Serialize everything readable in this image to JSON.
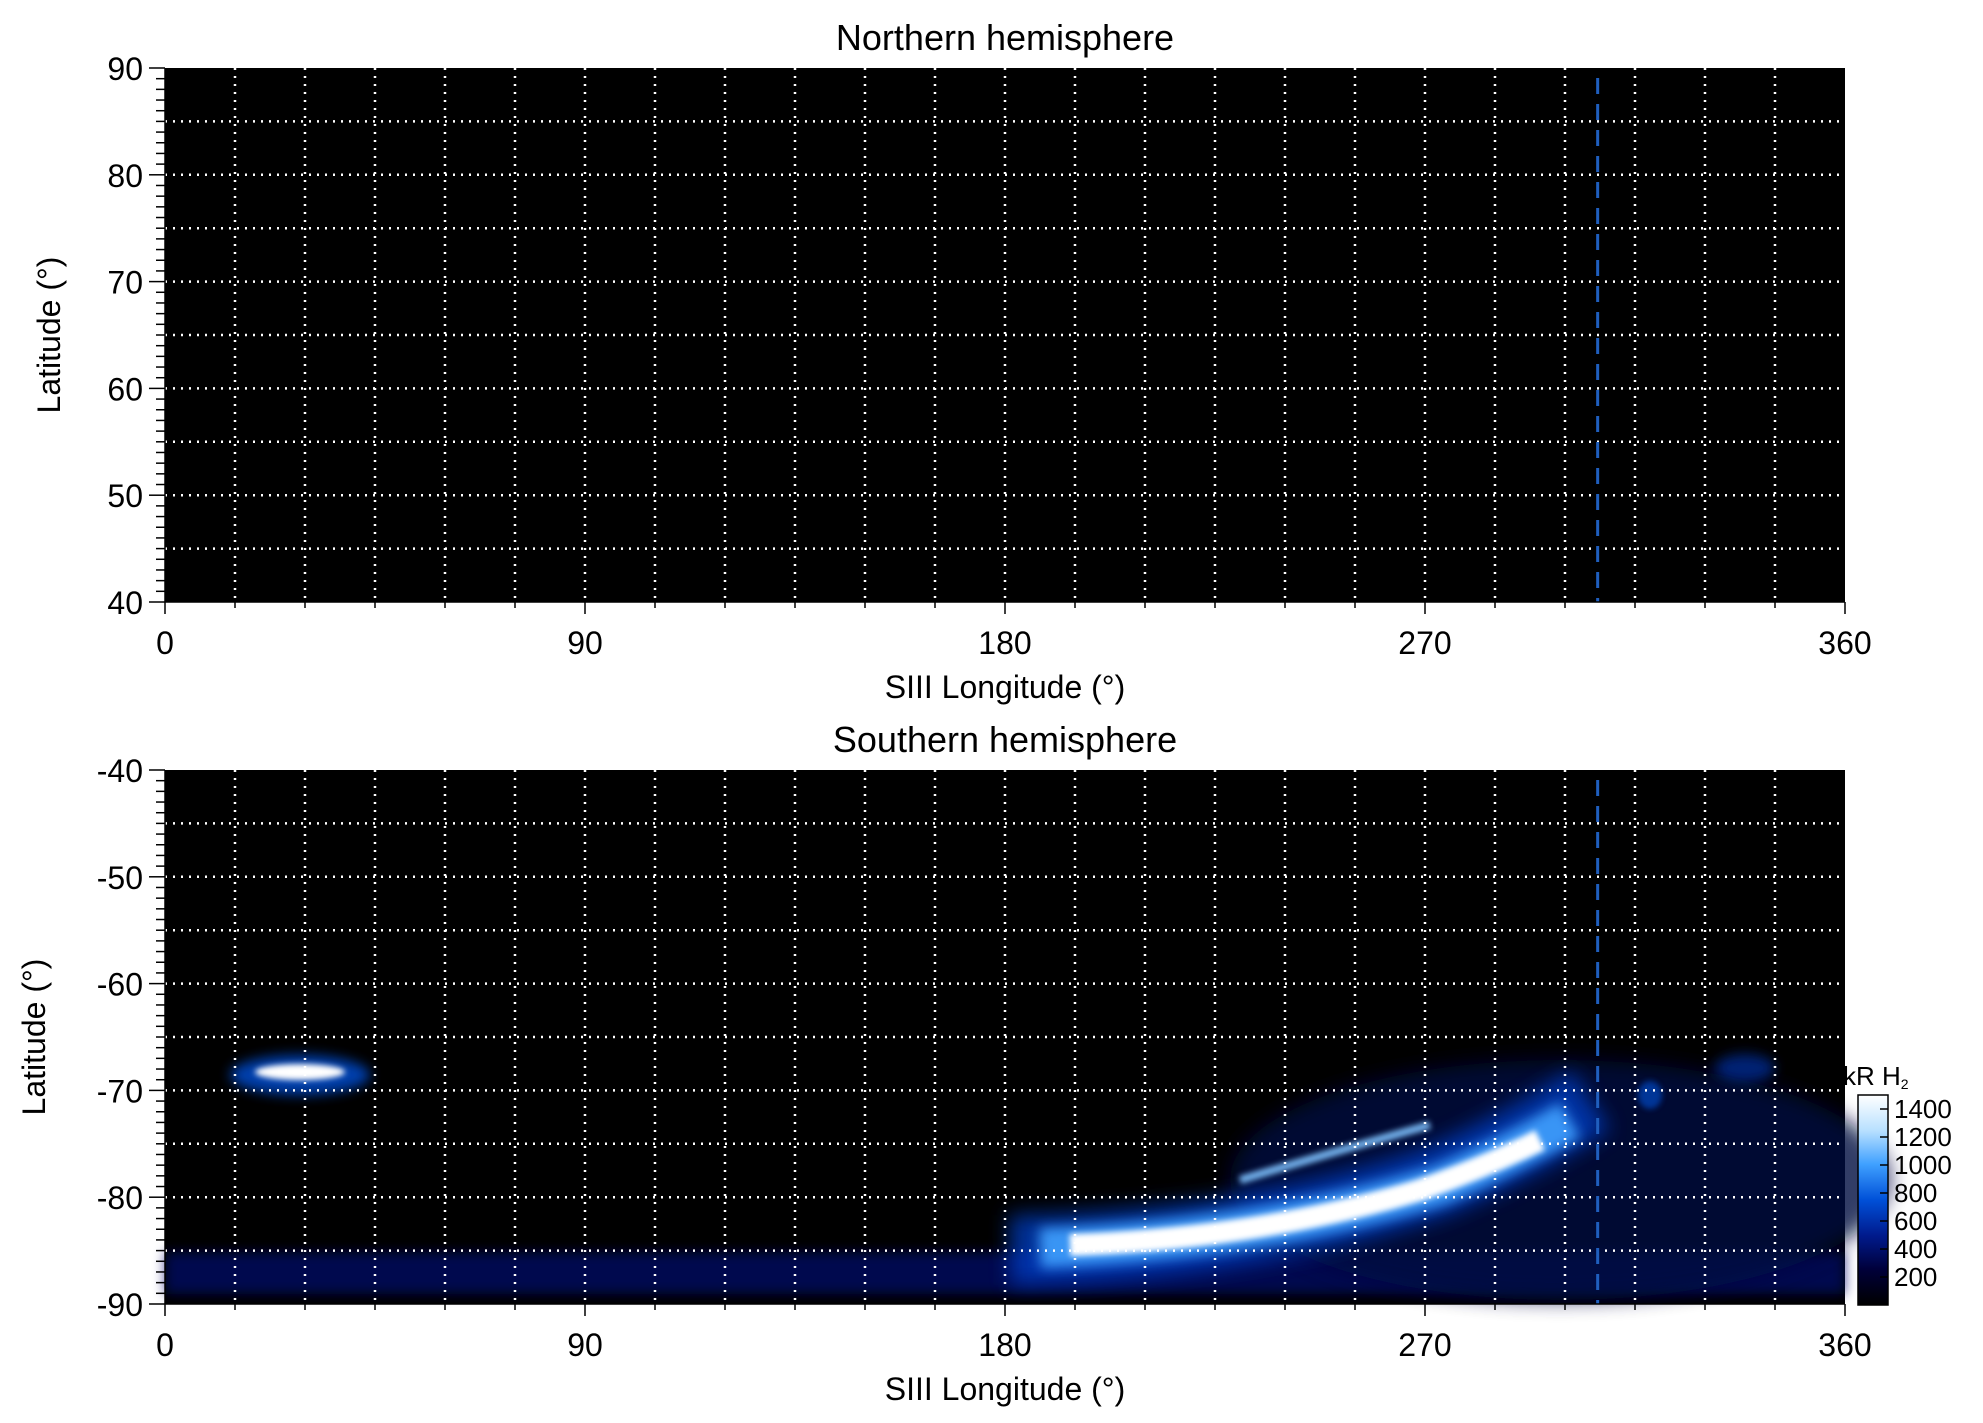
{
  "chart_data": [
    {
      "type": "heatmap",
      "title": "Northern hemisphere",
      "xlabel": "SIII Longitude (°)",
      "ylabel": "Latitude (°)",
      "xlim": [
        0,
        360
      ],
      "ylim": [
        40,
        90
      ],
      "xticks": [
        "0",
        "90",
        "180",
        "270",
        "360"
      ],
      "xtick_values": [
        0,
        90,
        180,
        270,
        360
      ],
      "yticks": [
        "90",
        "80",
        "70",
        "60",
        "50",
        "40"
      ],
      "ytick_values": [
        90,
        80,
        70,
        60,
        50,
        40
      ],
      "x_gridlines": [
        15,
        30,
        45,
        60,
        75,
        90,
        105,
        120,
        135,
        150,
        165,
        180,
        195,
        210,
        225,
        240,
        255,
        270,
        285,
        300,
        315,
        330,
        345
      ],
      "y_gridlines": [
        45,
        50,
        55,
        60,
        65,
        70,
        75,
        80,
        85
      ],
      "grid": "dotted",
      "reference_line": {
        "x": 307,
        "style": "dashed",
        "color": "#1f5fbf"
      },
      "emission_regions": []
    },
    {
      "type": "heatmap",
      "title": "Southern hemisphere",
      "xlabel": "SIII Longitude (°)",
      "ylabel": "Latitude (°)",
      "xlim": [
        0,
        360
      ],
      "ylim": [
        -90,
        -40
      ],
      "xticks": [
        "0",
        "90",
        "180",
        "270",
        "360"
      ],
      "xtick_values": [
        0,
        90,
        180,
        270,
        360
      ],
      "yticks": [
        "-40",
        "-50",
        "-60",
        "-70",
        "-80",
        "-90"
      ],
      "ytick_values": [
        -40,
        -50,
        -60,
        -70,
        -80,
        -90
      ],
      "x_gridlines": [
        15,
        30,
        45,
        60,
        75,
        90,
        105,
        120,
        135,
        150,
        165,
        180,
        195,
        210,
        225,
        240,
        255,
        270,
        285,
        300,
        315,
        330,
        345
      ],
      "y_gridlines": [
        -85,
        -80,
        -75,
        -70,
        -65,
        -60,
        -55,
        -50,
        -45
      ],
      "grid": "dotted",
      "reference_line": {
        "x": 307,
        "style": "dashed",
        "color": "#1f5fbf"
      },
      "colorbar": {
        "label_main": "kR H",
        "label_sub": "2",
        "ticks": [
          "1400",
          "1200",
          "1000",
          "800",
          "600",
          "400",
          "200"
        ],
        "tick_values": [
          1400,
          1200,
          1000,
          800,
          600,
          400,
          200
        ],
        "min": 0,
        "max": 1500,
        "colors": [
          "#000000",
          "#00003a",
          "#001a8c",
          "#0050d8",
          "#3fa0ff",
          "#b8e0ff",
          "#ffffff"
        ]
      },
      "emission_regions": [
        {
          "name": "main-oval-arc",
          "x_range": [
            195,
            300
          ],
          "lat_range": [
            -86,
            -75
          ],
          "peak": 1450
        },
        {
          "name": "polar-spot",
          "x_range": [
            15,
            45
          ],
          "lat_range": [
            -70,
            -66
          ],
          "peak": 1300
        },
        {
          "name": "low-latitude-band",
          "x_range": [
            0,
            360
          ],
          "lat_range": [
            -90,
            -85
          ],
          "peak": 400
        },
        {
          "name": "diffuse-patch",
          "x_range": [
            310,
            350
          ],
          "lat_range": [
            -72,
            -66
          ],
          "peak": 350
        }
      ]
    }
  ]
}
